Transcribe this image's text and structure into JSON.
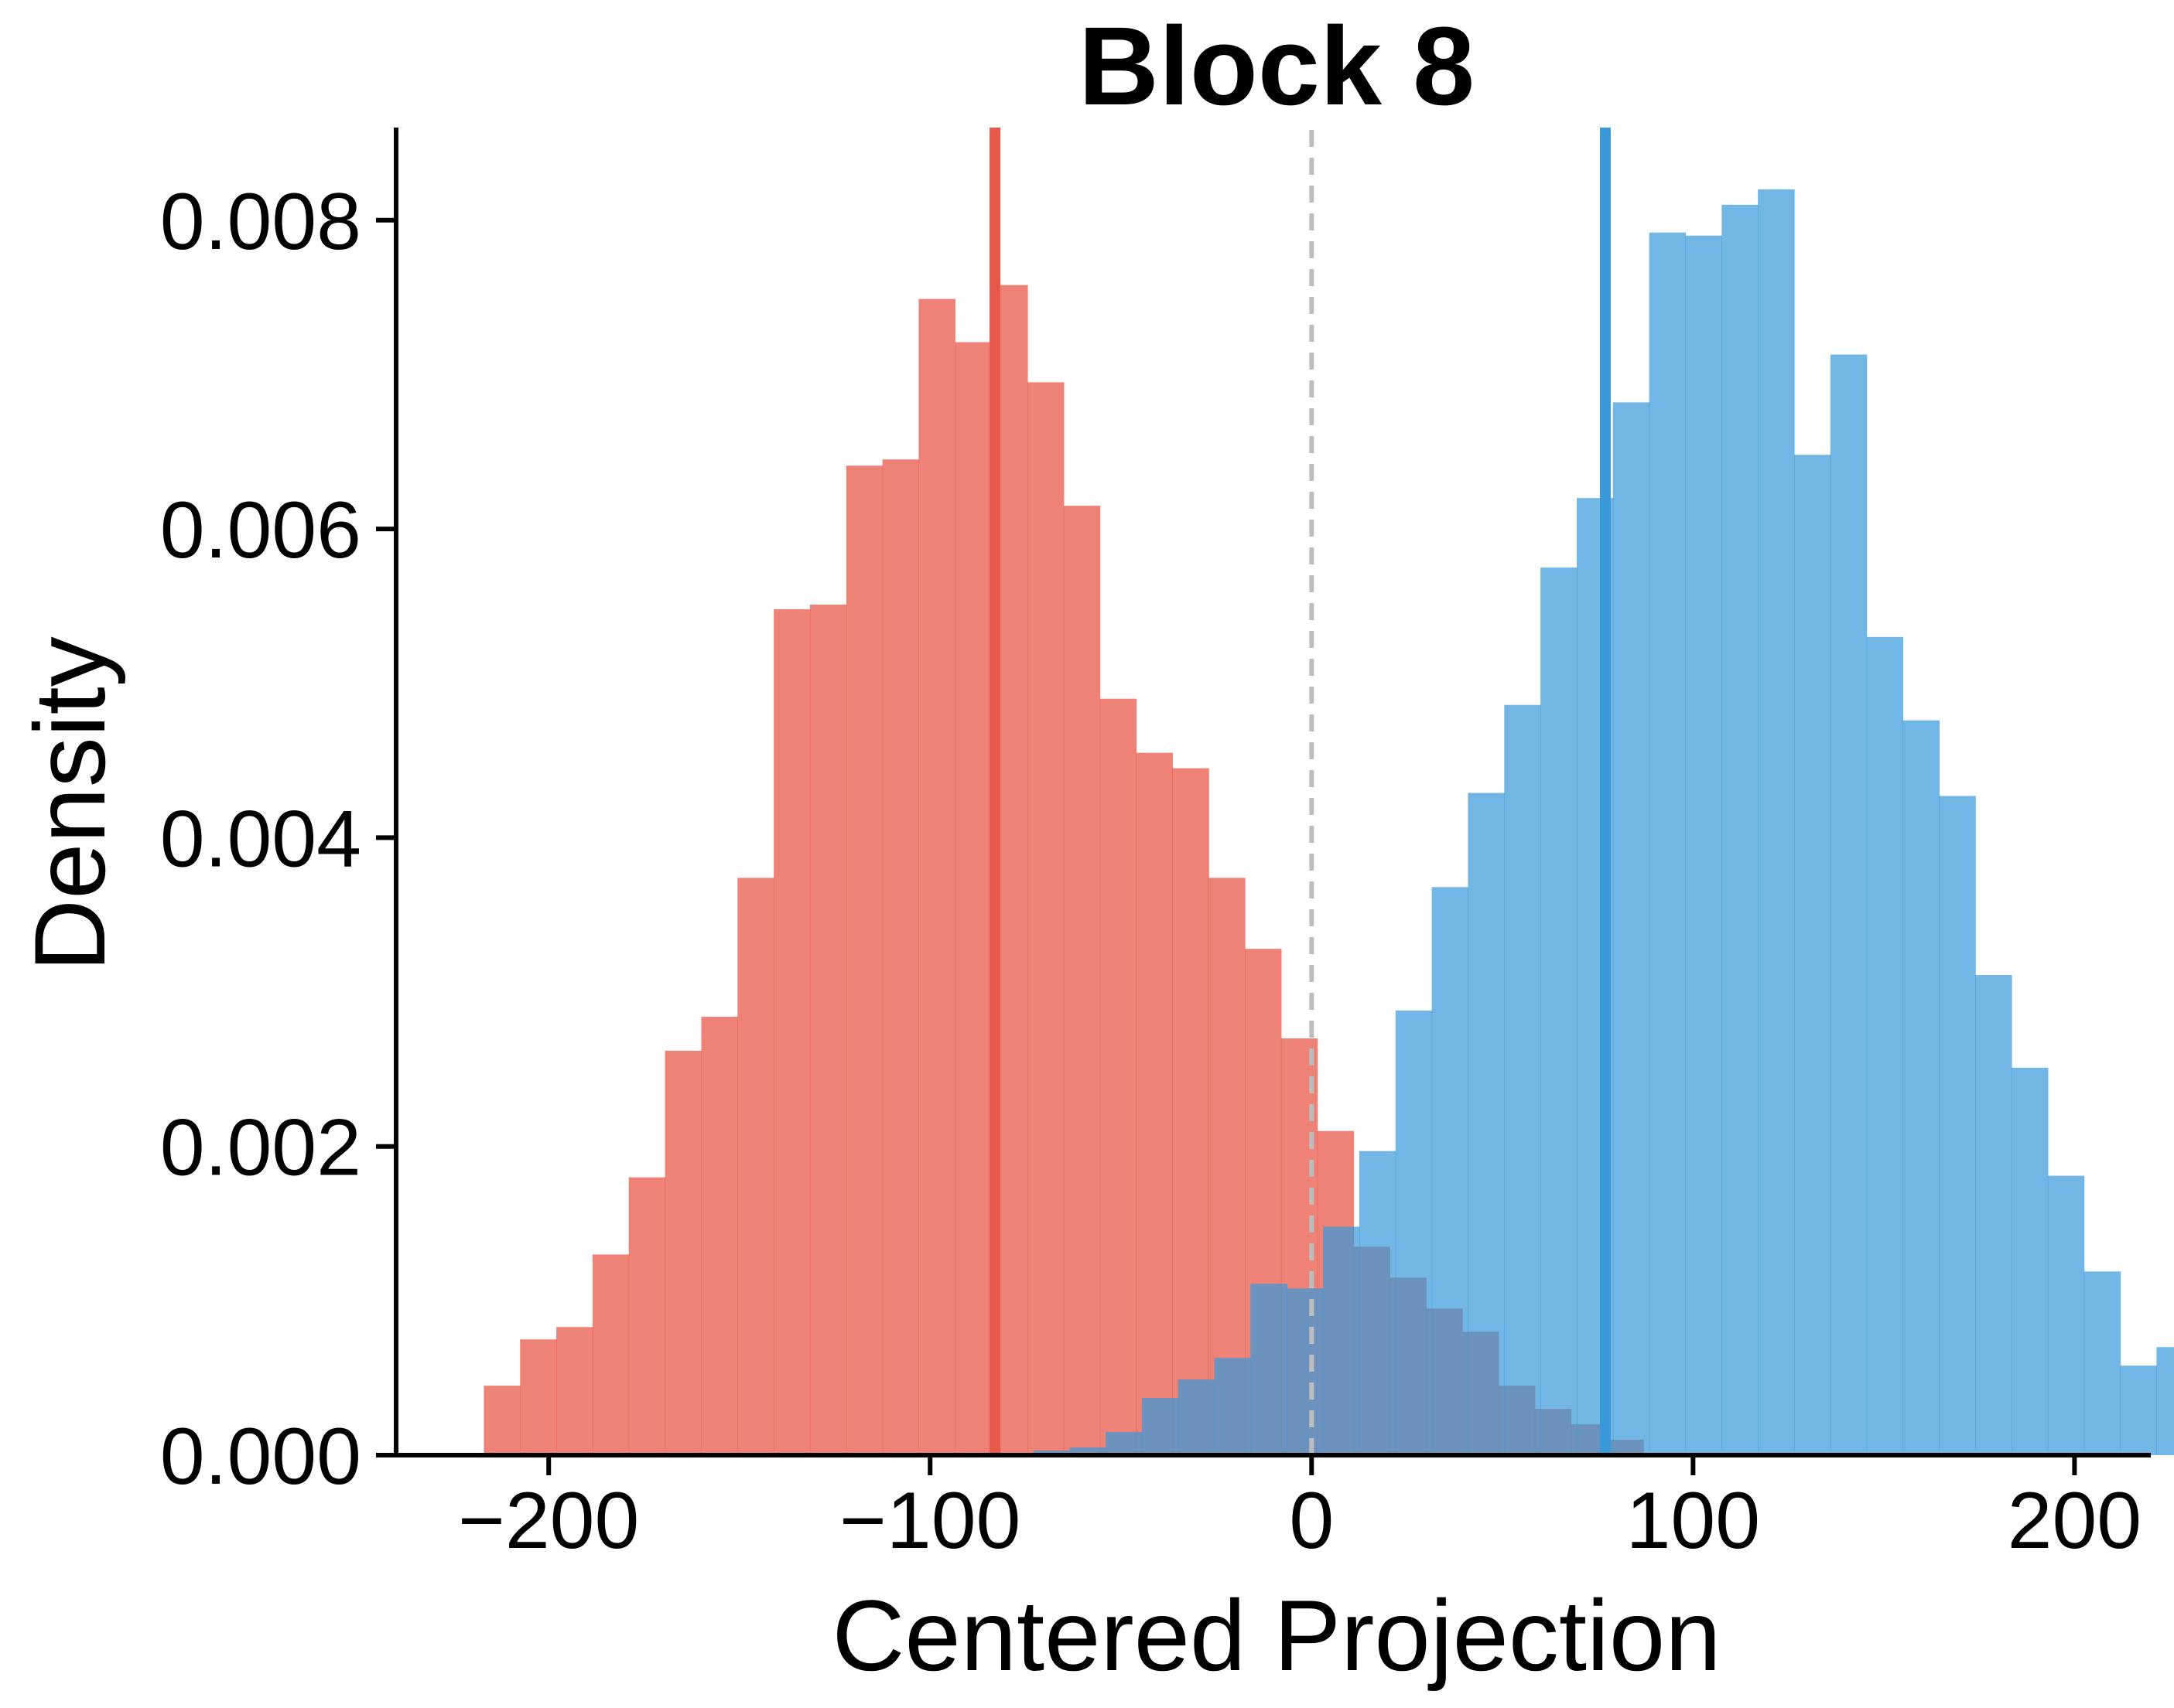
{
  "chart_data": {
    "type": "bar",
    "title": "Block 8",
    "xlabel": "Centered Projection",
    "ylabel": "Density",
    "xlim": [
      -240,
      220
    ],
    "ylim": [
      0,
      0.0086
    ],
    "x_ticks": [
      -200,
      -100,
      0,
      100,
      200
    ],
    "x_tick_labels": [
      "−200",
      "−100",
      "0",
      "100",
      "200"
    ],
    "y_ticks": [
      0,
      0.002,
      0.004,
      0.006,
      0.008
    ],
    "y_tick_labels": [
      "0.000",
      "0.002",
      "0.004",
      "0.006",
      "0.008"
    ],
    "grid": false,
    "legend": "none",
    "bin_width": 9.5,
    "series": [
      {
        "color": "#e8584a",
        "fill_opacity": 0.75,
        "mean": -83,
        "bin_start": -217,
        "values": [
          0.00045,
          0.00075,
          0.00083,
          0.0013,
          0.0018,
          0.00262,
          0.00284,
          0.00374,
          0.00548,
          0.00551,
          0.00641,
          0.00645,
          0.00749,
          0.00721,
          0.00758,
          0.00695,
          0.00615,
          0.0049,
          0.00455,
          0.00445,
          0.00374,
          0.00328,
          0.0027,
          0.0021,
          0.00135,
          0.00115,
          0.00095,
          0.0008,
          0.00045,
          0.0003,
          0.0002,
          0.0001
        ]
      },
      {
        "color": "#3a9ad9",
        "fill_opacity": 0.72,
        "mean": 77,
        "bin_start": -73,
        "values": [
          3e-05,
          5e-05,
          0.00015,
          0.00037,
          0.00049,
          0.00063,
          0.00111,
          0.00108,
          0.00148,
          0.00197,
          0.00288,
          0.00368,
          0.00429,
          0.00486,
          0.00575,
          0.0062,
          0.00682,
          0.00792,
          0.0079,
          0.0081,
          0.0082,
          0.00648,
          0.00713,
          0.0053,
          0.00476,
          0.00427,
          0.00311,
          0.00251,
          0.00181,
          0.00119,
          0.00058,
          0.0007
        ]
      }
    ],
    "reference_line": {
      "x": 0,
      "style": "dashed",
      "color": "#bdbdbd"
    }
  }
}
